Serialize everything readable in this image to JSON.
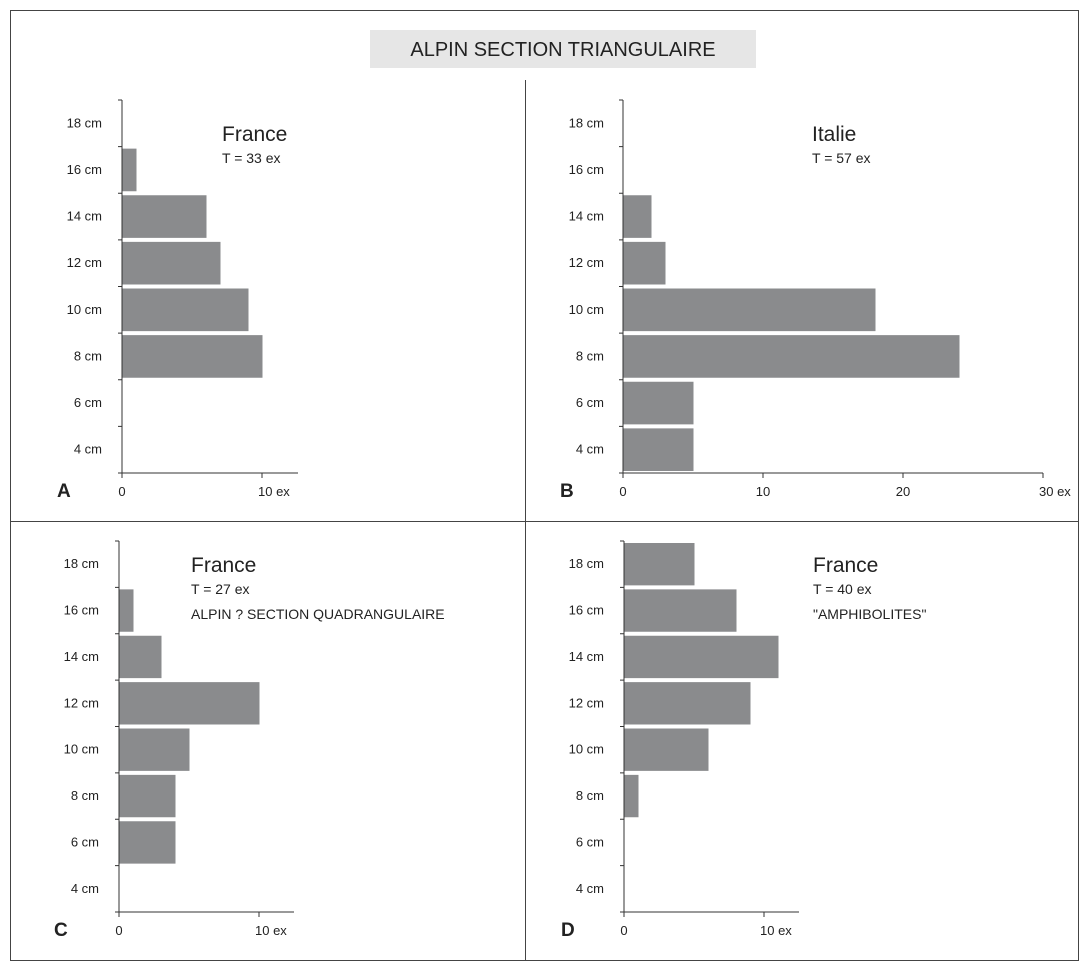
{
  "figure": {
    "title": "ALPIN SECTION TRIANGULAIRE"
  },
  "colors": {
    "bar": "#8a8b8d",
    "axis": "#333333",
    "frame": "#444444",
    "title_bg": "#e6e6e6",
    "text": "#222222"
  },
  "chart_data": [
    {
      "type": "bar",
      "orientation": "horizontal",
      "panel": "A",
      "title": "France",
      "subtitles": [
        "T = 33 ex"
      ],
      "categories": [
        "4 cm",
        "6 cm",
        "8 cm",
        "10 cm",
        "12 cm",
        "14 cm",
        "16 cm",
        "18 cm"
      ],
      "values": [
        0,
        0,
        10,
        9,
        7,
        6,
        1,
        0
      ],
      "xticks": [
        {
          "value": 0,
          "label": "0"
        },
        {
          "value": 10,
          "label": "10 ex"
        }
      ],
      "xlim": [
        0,
        12.5
      ],
      "grid": false
    },
    {
      "type": "bar",
      "orientation": "horizontal",
      "panel": "B",
      "title": "Italie",
      "subtitles": [
        "T = 57 ex"
      ],
      "categories": [
        "4 cm",
        "6 cm",
        "8 cm",
        "10 cm",
        "12 cm",
        "14 cm",
        "16 cm",
        "18 cm"
      ],
      "values": [
        5,
        5,
        24,
        18,
        3,
        2,
        0,
        0
      ],
      "xticks": [
        {
          "value": 0,
          "label": "0"
        },
        {
          "value": 10,
          "label": "10"
        },
        {
          "value": 20,
          "label": "20"
        },
        {
          "value": 30,
          "label": "30 ex"
        }
      ],
      "xlim": [
        0,
        30
      ],
      "grid": false
    },
    {
      "type": "bar",
      "orientation": "horizontal",
      "panel": "C",
      "title": "France",
      "subtitles": [
        "T = 27 ex",
        "ALPIN ? SECTION QUADRANGULAIRE"
      ],
      "categories": [
        "4 cm",
        "6 cm",
        "8 cm",
        "10 cm",
        "12 cm",
        "14 cm",
        "16 cm",
        "18 cm"
      ],
      "values": [
        0,
        4,
        4,
        5,
        10,
        3,
        1,
        0
      ],
      "xticks": [
        {
          "value": 0,
          "label": "0"
        },
        {
          "value": 10,
          "label": "10 ex"
        }
      ],
      "xlim": [
        0,
        12.5
      ],
      "grid": false
    },
    {
      "type": "bar",
      "orientation": "horizontal",
      "panel": "D",
      "title": "France",
      "subtitles": [
        "T = 40 ex",
        "\"AMPHIBOLITES\""
      ],
      "categories": [
        "4 cm",
        "6 cm",
        "8 cm",
        "10 cm",
        "12 cm",
        "14 cm",
        "16 cm",
        "18 cm"
      ],
      "values": [
        0,
        0,
        1,
        6,
        9,
        11,
        8,
        5
      ],
      "xticks": [
        {
          "value": 0,
          "label": "0"
        },
        {
          "value": 10,
          "label": "10 ex"
        }
      ],
      "xlim": [
        0,
        12.5
      ],
      "grid": false
    }
  ]
}
